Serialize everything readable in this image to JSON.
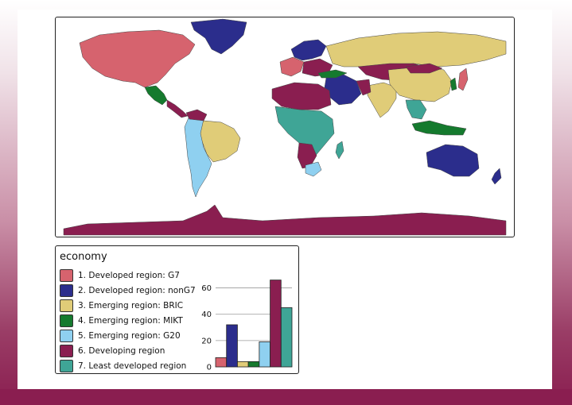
{
  "legend": {
    "title": "economy",
    "items": [
      {
        "label": "1. Developed region: G7",
        "color": "#d6636e"
      },
      {
        "label": "2. Developed region: nonG7",
        "color": "#2b2d8c"
      },
      {
        "label": "3. Emerging region: BRIC",
        "color": "#e0cc78"
      },
      {
        "label": "4. Emerging region: MIKT",
        "color": "#157a2e"
      },
      {
        "label": "5. Emerging region: G20",
        "color": "#8fd0f0"
      },
      {
        "label": "6. Developing region",
        "color": "#8a1e50"
      },
      {
        "label": "7. Least developed region",
        "color": "#3fa596"
      }
    ]
  },
  "chart_data": {
    "type": "bar",
    "categories": [
      "1. Developed region: G7",
      "2. Developed region: nonG7",
      "3. Emerging region: BRIC",
      "4. Emerging region: MIKT",
      "5. Emerging region: G20",
      "6. Developing region",
      "7. Least developed region"
    ],
    "values": [
      7,
      32,
      4,
      4,
      19,
      66,
      45
    ],
    "colors": [
      "#d6636e",
      "#2b2d8c",
      "#e0cc78",
      "#157a2e",
      "#8fd0f0",
      "#8a1e50",
      "#3fa596"
    ],
    "yticks": [
      "0",
      "20",
      "40",
      "60"
    ],
    "ylim": [
      0,
      70
    ],
    "grid": true
  },
  "map": {
    "background": "#ffffff",
    "border_color": "#333333"
  }
}
